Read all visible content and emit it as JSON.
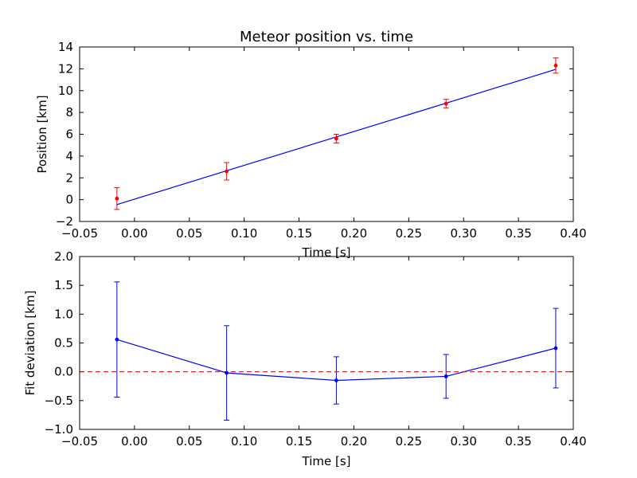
{
  "chart_data": [
    {
      "type": "scatter",
      "title": "Meteor position vs. time",
      "xlabel": "Time [s]",
      "ylabel": "Position [km]",
      "xlim": [
        -0.05,
        0.4
      ],
      "ylim": [
        -2,
        14
      ],
      "xticks": [
        -0.05,
        0.0,
        0.05,
        0.1,
        0.15,
        0.2,
        0.25,
        0.3,
        0.35,
        0.4
      ],
      "xtick_labels": [
        "−0.05",
        "0.00",
        "0.05",
        "0.10",
        "0.15",
        "0.20",
        "0.25",
        "0.30",
        "0.35",
        "0.40"
      ],
      "yticks": [
        -2,
        0,
        2,
        4,
        6,
        8,
        10,
        12,
        14
      ],
      "ytick_labels": [
        "−2",
        "0",
        "2",
        "4",
        "6",
        "8",
        "10",
        "12",
        "14"
      ],
      "grid": false,
      "series": [
        {
          "kind": "errorbar",
          "color": "#ff0000",
          "x": [
            -0.016,
            0.084,
            0.184,
            0.284,
            0.384
          ],
          "y": [
            0.1,
            2.6,
            5.6,
            8.8,
            12.3
          ],
          "yerr": [
            1.0,
            0.8,
            0.4,
            0.4,
            0.7
          ]
        },
        {
          "kind": "line",
          "color": "#0000ff",
          "x": [
            -0.016,
            0.384
          ],
          "y": [
            -0.45,
            11.95
          ]
        }
      ]
    },
    {
      "type": "line",
      "title": "",
      "xlabel": "Time [s]",
      "ylabel": "Fit deviation [km]",
      "xlim": [
        -0.05,
        0.4
      ],
      "ylim": [
        -1.0,
        2.0
      ],
      "xticks": [
        -0.05,
        0.0,
        0.05,
        0.1,
        0.15,
        0.2,
        0.25,
        0.3,
        0.35,
        0.4
      ],
      "xtick_labels": [
        "−0.05",
        "0.00",
        "0.05",
        "0.10",
        "0.15",
        "0.20",
        "0.25",
        "0.30",
        "0.35",
        "0.40"
      ],
      "yticks": [
        -1.0,
        -0.5,
        0.0,
        0.5,
        1.0,
        1.5,
        2.0
      ],
      "ytick_labels": [
        "−1.0",
        "−0.5",
        "0.0",
        "0.5",
        "1.0",
        "1.5",
        "2.0"
      ],
      "grid": false,
      "series": [
        {
          "kind": "errorbar-line",
          "color": "#0000ff",
          "x": [
            -0.016,
            0.084,
            0.184,
            0.284,
            0.384
          ],
          "y": [
            0.56,
            -0.02,
            -0.15,
            -0.08,
            0.41
          ],
          "yerr": [
            1.0,
            0.82,
            0.41,
            0.38,
            0.69
          ]
        },
        {
          "kind": "reference-dashed",
          "color": "#ff0000",
          "y": 0.0
        }
      ]
    }
  ]
}
